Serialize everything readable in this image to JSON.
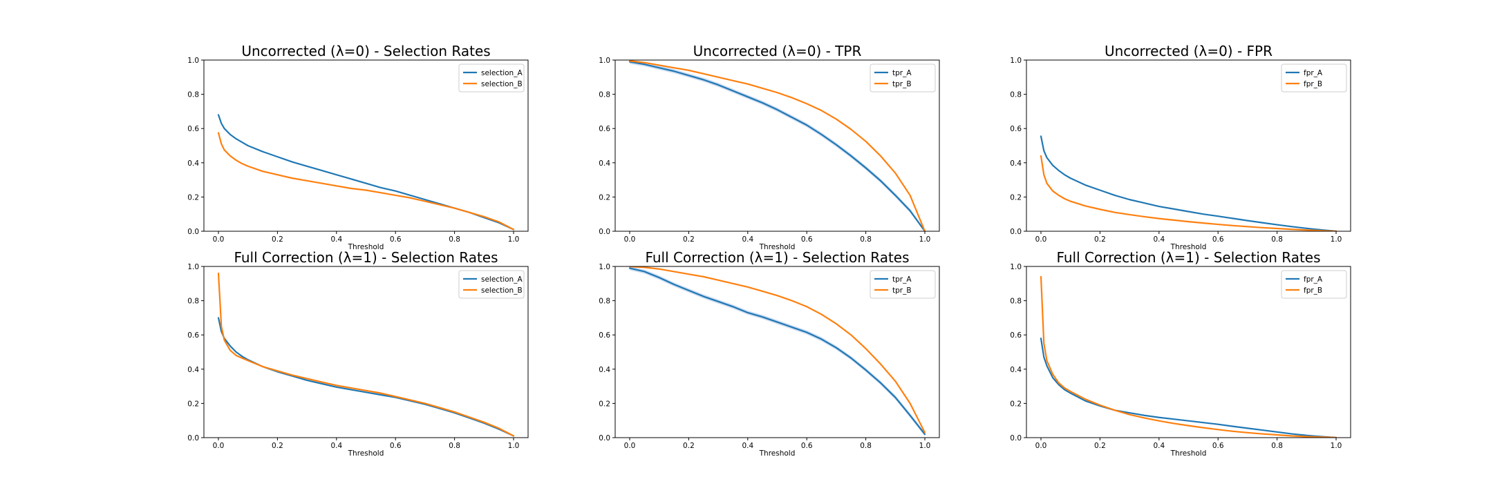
{
  "figure": {
    "colors": {
      "A": "#1f77b4",
      "B": "#ff7f0e",
      "band": "#aec7e8"
    }
  },
  "chart_data": [
    {
      "type": "line",
      "title": "Uncorrected (λ=0) - Selection Rates",
      "xlabel": "Threshold",
      "ylabel": "",
      "xlim": [
        0,
        1
      ],
      "ylim": [
        0,
        1
      ],
      "xticks": [
        "0.0",
        "0.2",
        "0.4",
        "0.6",
        "0.8",
        "1.0"
      ],
      "yticks": [
        "0.0",
        "0.2",
        "0.4",
        "0.6",
        "0.8",
        "1.0"
      ],
      "legend": "top-right",
      "x": [
        0.0,
        0.01,
        0.02,
        0.04,
        0.06,
        0.08,
        0.1,
        0.15,
        0.2,
        0.25,
        0.3,
        0.35,
        0.4,
        0.45,
        0.5,
        0.55,
        0.6,
        0.65,
        0.7,
        0.75,
        0.8,
        0.85,
        0.9,
        0.95,
        1.0
      ],
      "series": [
        {
          "name": "selection_A",
          "color": "A",
          "band": false,
          "values": [
            0.68,
            0.63,
            0.6,
            0.565,
            0.54,
            0.52,
            0.5,
            0.465,
            0.435,
            0.405,
            0.38,
            0.355,
            0.33,
            0.305,
            0.28,
            0.255,
            0.235,
            0.21,
            0.185,
            0.16,
            0.135,
            0.11,
            0.08,
            0.05,
            0.01
          ]
        },
        {
          "name": "selection_B",
          "color": "B",
          "band": false,
          "values": [
            0.575,
            0.51,
            0.475,
            0.44,
            0.415,
            0.395,
            0.38,
            0.35,
            0.33,
            0.31,
            0.295,
            0.28,
            0.265,
            0.25,
            0.24,
            0.225,
            0.21,
            0.195,
            0.175,
            0.155,
            0.135,
            0.11,
            0.085,
            0.055,
            0.01
          ]
        }
      ]
    },
    {
      "type": "line",
      "title": "Uncorrected (λ=0) - TPR",
      "xlabel": "Threshold",
      "ylabel": "",
      "xlim": [
        0,
        1
      ],
      "ylim": [
        0,
        1
      ],
      "xticks": [
        "0.0",
        "0.2",
        "0.4",
        "0.6",
        "0.8",
        "1.0"
      ],
      "yticks": [
        "0.0",
        "0.2",
        "0.4",
        "0.6",
        "0.8",
        "1.0"
      ],
      "legend": "top-right",
      "x": [
        0.0,
        0.05,
        0.1,
        0.15,
        0.2,
        0.25,
        0.3,
        0.35,
        0.4,
        0.45,
        0.5,
        0.55,
        0.6,
        0.65,
        0.7,
        0.75,
        0.8,
        0.85,
        0.9,
        0.95,
        1.0
      ],
      "series": [
        {
          "name": "tpr_A",
          "color": "A",
          "band": true,
          "values": [
            0.99,
            0.975,
            0.955,
            0.935,
            0.91,
            0.885,
            0.855,
            0.82,
            0.785,
            0.75,
            0.71,
            0.665,
            0.62,
            0.565,
            0.505,
            0.44,
            0.37,
            0.295,
            0.21,
            0.12,
            0.0
          ]
        },
        {
          "name": "tpr_B",
          "color": "B",
          "band": false,
          "values": [
            0.995,
            0.985,
            0.97,
            0.955,
            0.94,
            0.92,
            0.9,
            0.88,
            0.86,
            0.835,
            0.81,
            0.78,
            0.745,
            0.705,
            0.655,
            0.595,
            0.525,
            0.44,
            0.34,
            0.21,
            0.0
          ]
        }
      ]
    },
    {
      "type": "line",
      "title": "Uncorrected (λ=0) - FPR",
      "xlabel": "Threshold",
      "ylabel": "",
      "xlim": [
        0,
        1
      ],
      "ylim": [
        0,
        1
      ],
      "xticks": [
        "0.0",
        "0.2",
        "0.4",
        "0.6",
        "0.8",
        "1.0"
      ],
      "yticks": [
        "0.0",
        "0.2",
        "0.4",
        "0.6",
        "0.8",
        "1.0"
      ],
      "legend": "top-right",
      "x": [
        0.0,
        0.01,
        0.02,
        0.04,
        0.06,
        0.08,
        0.1,
        0.15,
        0.2,
        0.25,
        0.3,
        0.35,
        0.4,
        0.45,
        0.5,
        0.55,
        0.6,
        0.65,
        0.7,
        0.75,
        0.8,
        0.85,
        0.9,
        0.95,
        1.0
      ],
      "series": [
        {
          "name": "fpr_A",
          "color": "A",
          "band": false,
          "values": [
            0.555,
            0.47,
            0.43,
            0.385,
            0.355,
            0.33,
            0.31,
            0.27,
            0.24,
            0.21,
            0.185,
            0.165,
            0.145,
            0.13,
            0.115,
            0.1,
            0.088,
            0.075,
            0.062,
            0.05,
            0.038,
            0.027,
            0.017,
            0.008,
            0.0
          ]
        },
        {
          "name": "fpr_B",
          "color": "B",
          "band": false,
          "values": [
            0.44,
            0.33,
            0.28,
            0.235,
            0.21,
            0.19,
            0.175,
            0.148,
            0.128,
            0.11,
            0.097,
            0.085,
            0.074,
            0.065,
            0.056,
            0.048,
            0.04,
            0.033,
            0.027,
            0.021,
            0.016,
            0.011,
            0.007,
            0.003,
            0.0
          ]
        }
      ]
    },
    {
      "type": "line",
      "title": "Full Correction (λ=1) - Selection Rates",
      "xlabel": "Threshold",
      "ylabel": "",
      "xlim": [
        0,
        1
      ],
      "ylim": [
        0,
        1
      ],
      "xticks": [
        "0.0",
        "0.2",
        "0.4",
        "0.6",
        "0.8",
        "1.0"
      ],
      "yticks": [
        "0.0",
        "0.2",
        "0.4",
        "0.6",
        "0.8",
        "1.0"
      ],
      "legend": "top-right",
      "x": [
        0.0,
        0.01,
        0.02,
        0.04,
        0.06,
        0.08,
        0.1,
        0.15,
        0.2,
        0.25,
        0.3,
        0.35,
        0.4,
        0.45,
        0.5,
        0.55,
        0.6,
        0.65,
        0.7,
        0.75,
        0.8,
        0.85,
        0.9,
        0.95,
        1.0
      ],
      "series": [
        {
          "name": "selection_A",
          "color": "A",
          "band": false,
          "values": [
            0.7,
            0.62,
            0.58,
            0.535,
            0.5,
            0.475,
            0.455,
            0.415,
            0.385,
            0.36,
            0.335,
            0.315,
            0.295,
            0.28,
            0.265,
            0.25,
            0.235,
            0.215,
            0.195,
            0.17,
            0.145,
            0.115,
            0.085,
            0.05,
            0.01
          ]
        },
        {
          "name": "selection_B",
          "color": "B",
          "band": false,
          "values": [
            0.96,
            0.65,
            0.57,
            0.51,
            0.48,
            0.465,
            0.45,
            0.415,
            0.39,
            0.365,
            0.345,
            0.325,
            0.305,
            0.29,
            0.275,
            0.26,
            0.24,
            0.22,
            0.2,
            0.175,
            0.15,
            0.12,
            0.09,
            0.055,
            0.01
          ]
        }
      ]
    },
    {
      "type": "line",
      "title": "Full Correction (λ=1) - Selection Rates",
      "xlabel": "Threshold",
      "ylabel": "",
      "xlim": [
        0,
        1
      ],
      "ylim": [
        0,
        1
      ],
      "xticks": [
        "0.0",
        "0.2",
        "0.4",
        "0.6",
        "0.8",
        "1.0"
      ],
      "yticks": [
        "0.0",
        "0.2",
        "0.4",
        "0.6",
        "0.8",
        "1.0"
      ],
      "legend": "top-right",
      "x": [
        0.0,
        0.05,
        0.1,
        0.15,
        0.2,
        0.25,
        0.3,
        0.35,
        0.4,
        0.45,
        0.5,
        0.55,
        0.6,
        0.65,
        0.7,
        0.75,
        0.8,
        0.85,
        0.9,
        0.95,
        1.0
      ],
      "series": [
        {
          "name": "tpr_A",
          "color": "A",
          "band": true,
          "values": [
            0.99,
            0.97,
            0.935,
            0.895,
            0.86,
            0.825,
            0.795,
            0.765,
            0.73,
            0.705,
            0.675,
            0.645,
            0.615,
            0.575,
            0.525,
            0.465,
            0.395,
            0.32,
            0.235,
            0.13,
            0.02
          ]
        },
        {
          "name": "tpr_B",
          "color": "B",
          "band": false,
          "values": [
            1.0,
            0.995,
            0.985,
            0.97,
            0.955,
            0.94,
            0.92,
            0.9,
            0.88,
            0.855,
            0.83,
            0.8,
            0.765,
            0.72,
            0.665,
            0.6,
            0.52,
            0.43,
            0.33,
            0.2,
            0.03
          ]
        }
      ]
    },
    {
      "type": "line",
      "title": "Full Correction (λ=1) - Selection Rates",
      "xlabel": "Threshold",
      "ylabel": "",
      "xlim": [
        0,
        1
      ],
      "ylim": [
        0,
        1
      ],
      "xticks": [
        "0.0",
        "0.2",
        "0.4",
        "0.6",
        "0.8",
        "1.0"
      ],
      "yticks": [
        "0.0",
        "0.2",
        "0.4",
        "0.6",
        "0.8",
        "1.0"
      ],
      "legend": "top-right",
      "x": [
        0.0,
        0.01,
        0.02,
        0.04,
        0.06,
        0.08,
        0.1,
        0.15,
        0.2,
        0.25,
        0.3,
        0.35,
        0.4,
        0.45,
        0.5,
        0.55,
        0.6,
        0.65,
        0.7,
        0.75,
        0.8,
        0.85,
        0.9,
        0.95,
        1.0
      ],
      "series": [
        {
          "name": "fpr_A",
          "color": "A",
          "band": false,
          "values": [
            0.58,
            0.47,
            0.42,
            0.35,
            0.31,
            0.28,
            0.26,
            0.215,
            0.185,
            0.16,
            0.145,
            0.13,
            0.118,
            0.108,
            0.098,
            0.088,
            0.078,
            0.066,
            0.055,
            0.044,
            0.033,
            0.022,
            0.013,
            0.006,
            0.0
          ]
        },
        {
          "name": "fpr_B",
          "color": "B",
          "band": false,
          "values": [
            0.94,
            0.55,
            0.45,
            0.37,
            0.32,
            0.29,
            0.27,
            0.225,
            0.19,
            0.16,
            0.135,
            0.115,
            0.098,
            0.083,
            0.07,
            0.058,
            0.047,
            0.037,
            0.029,
            0.022,
            0.016,
            0.01,
            0.006,
            0.003,
            0.0
          ]
        }
      ]
    }
  ]
}
